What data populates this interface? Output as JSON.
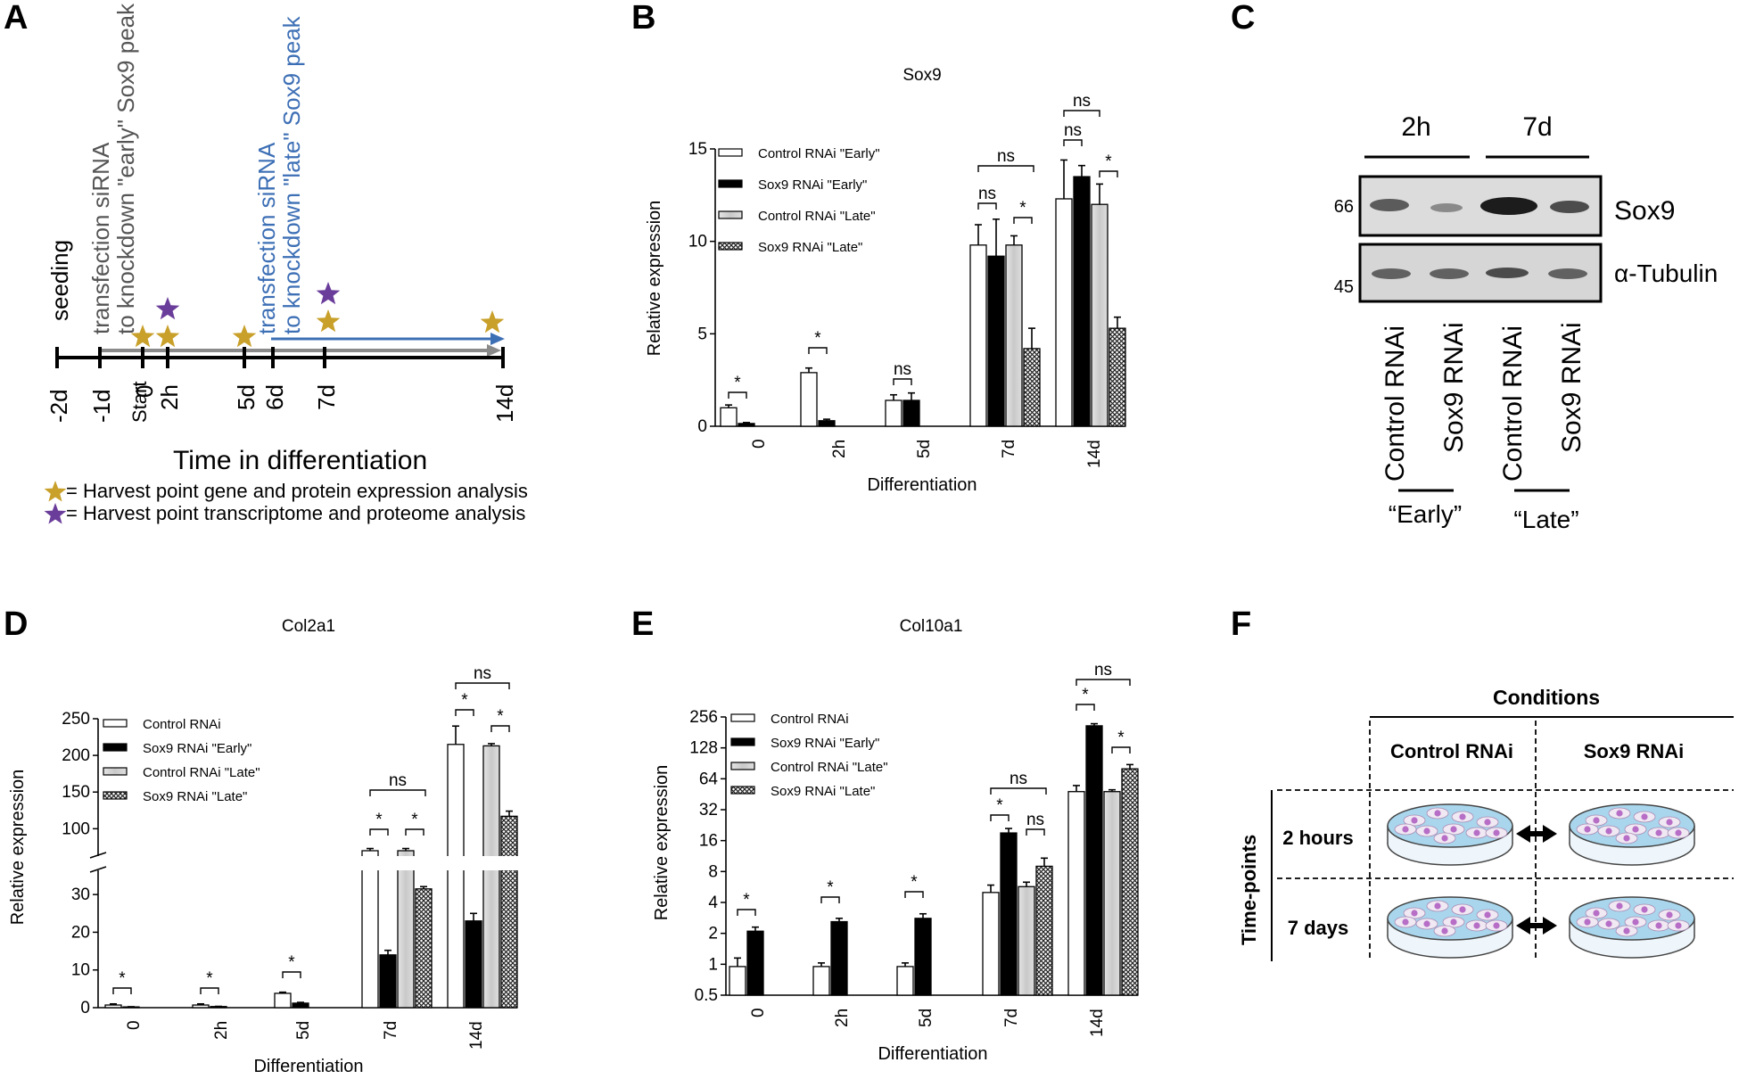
{
  "panel_labels": {
    "A": "A",
    "B": "B",
    "C": "C",
    "D": "D",
    "E": "E",
    "F": "F"
  },
  "colors": {
    "gold_star": "#c8a02a",
    "purple_star": "#6a3d9a",
    "late_arrow": "#3d6fb5",
    "early_arrow": "#808080",
    "late_text": "#3d6fb5",
    "early_text": "#555555",
    "dish": "#a9d6ec",
    "cell": "#b76ec6"
  },
  "timeline": {
    "ticks": [
      "-2d",
      "-1d",
      "0",
      "2h",
      "5d",
      "6d",
      "7d",
      "14d"
    ],
    "start_label": "Start",
    "event_seeding": "seeding",
    "event_early_line1": "transfection siRNA",
    "event_early_line2": "to knockdown \"early\" Sox9 peak",
    "event_late_line1": "transfection siRNA",
    "event_late_line2": "to knockdown \"late\" Sox9 peak",
    "axis_title": "Time in differentiation",
    "legend_gold": "= Harvest point gene and protein expression analysis",
    "legend_purple": "= Harvest point transcriptome and proteome analysis"
  },
  "chart_data": [
    {
      "id": "B",
      "type": "bar",
      "title": "Sox9",
      "xlabel": "Differentiation",
      "ylabel": "Relative expression",
      "categories": [
        "0",
        "2h",
        "5d",
        "7d",
        "14d"
      ],
      "ylim": [
        0,
        15
      ],
      "yticks": [
        "0",
        "5",
        "10",
        "15"
      ],
      "series": [
        {
          "name": "Control RNAi \"Early\"",
          "style": "white",
          "values": [
            1.0,
            2.9,
            1.4,
            9.8,
            12.3
          ],
          "errors": [
            0.15,
            0.25,
            0.3,
            1.1,
            2.1
          ]
        },
        {
          "name": "Sox9 RNAi \"Early\"",
          "style": "black",
          "values": [
            0.15,
            0.3,
            1.4,
            9.2,
            13.5
          ],
          "errors": [
            0.05,
            0.08,
            0.4,
            2.0,
            0.6
          ]
        },
        {
          "name": "Control RNAi \"Late\"",
          "style": "grey",
          "values": [
            null,
            null,
            null,
            9.8,
            12.0
          ],
          "errors": [
            null,
            null,
            null,
            0.5,
            1.1
          ]
        },
        {
          "name": "Sox9 RNAi \"Late\"",
          "style": "hatch",
          "values": [
            null,
            null,
            null,
            4.2,
            5.3
          ],
          "errors": [
            null,
            null,
            null,
            1.1,
            0.6
          ]
        }
      ],
      "annotations": [
        "*",
        "*",
        "ns",
        "ns",
        "ns",
        "*",
        "ns",
        "ns",
        "*"
      ]
    },
    {
      "id": "D",
      "type": "bar",
      "title": "Col2a1",
      "xlabel": "Differentiation",
      "ylabel": "Relative expression",
      "categories": [
        "0",
        "2h",
        "5d",
        "7d",
        "14d"
      ],
      "ylim": [
        0,
        250
      ],
      "yticks_lower": [
        "0",
        "10",
        "20",
        "30"
      ],
      "yticks_upper": [
        "100",
        "150",
        "200",
        "250"
      ],
      "series": [
        {
          "name": "Control RNAi",
          "style": "white",
          "values": [
            0.7,
            0.7,
            3.8,
            70,
            215
          ],
          "errors": [
            0.3,
            0.3,
            0.3,
            3,
            25
          ]
        },
        {
          "name": "Sox9 RNAi \"Early\"",
          "style": "black",
          "values": [
            0.2,
            0.3,
            1.2,
            14,
            23
          ],
          "errors": [
            0.05,
            0.05,
            0.2,
            1.2,
            2
          ]
        },
        {
          "name": "Control RNAi \"Late\"",
          "style": "grey",
          "values": [
            null,
            null,
            null,
            70,
            213
          ],
          "errors": [
            null,
            null,
            null,
            3,
            3
          ]
        },
        {
          "name": "Sox9 RNAi \"Late\"",
          "style": "hatch",
          "values": [
            null,
            null,
            null,
            31.5,
            117
          ],
          "errors": [
            null,
            null,
            null,
            0.6,
            7
          ]
        }
      ],
      "annotations": [
        "*",
        "*",
        "*",
        "ns",
        "*",
        "*",
        "ns",
        "*",
        "*"
      ]
    },
    {
      "id": "E",
      "type": "bar",
      "title": "Col10a1",
      "xlabel": "Differentiation",
      "ylabel": "Relative expression",
      "categories": [
        "0",
        "2h",
        "5d",
        "7d",
        "14d"
      ],
      "ylim": [
        0.5,
        256
      ],
      "yscale": "log2",
      "yticks": [
        "0.5",
        "1",
        "2",
        "4",
        "8",
        "16",
        "32",
        "64",
        "128",
        "256"
      ],
      "series": [
        {
          "name": "Control RNAi",
          "style": "white",
          "values": [
            0.95,
            0.95,
            0.95,
            5.0,
            48
          ],
          "errors": [
            0.2,
            0.08,
            0.08,
            0.9,
            7
          ]
        },
        {
          "name": "Sox9 RNAi \"Early\"",
          "style": "black",
          "values": [
            2.1,
            2.6,
            2.8,
            19,
            210
          ],
          "errors": [
            0.2,
            0.2,
            0.3,
            2,
            10
          ]
        },
        {
          "name": "Control RNAi \"Late\"",
          "style": "grey",
          "values": [
            null,
            null,
            null,
            5.7,
            48
          ],
          "errors": [
            null,
            null,
            null,
            0.6,
            2
          ]
        },
        {
          "name": "Sox9 RNAi \"Late\"",
          "style": "hatch",
          "values": [
            null,
            null,
            null,
            9.0,
            80
          ],
          "errors": [
            null,
            null,
            null,
            1.8,
            8
          ]
        }
      ],
      "annotations": [
        "*",
        "*",
        "*",
        "ns",
        "*",
        "ns",
        "ns",
        "*",
        "*"
      ]
    }
  ],
  "blot": {
    "top_labels": [
      "2h",
      "7d"
    ],
    "mw": [
      "66",
      "45"
    ],
    "proteins": [
      "Sox9",
      "α-Tubulin"
    ],
    "lanes": [
      "Control RNAi",
      "Sox9 RNAi",
      "Control RNAi",
      "Sox9 RNAi"
    ],
    "group_early": "“Early”",
    "group_late": "“Late”"
  },
  "conditions": {
    "header": "Conditions",
    "col1": "Control RNAi",
    "col2": "Sox9 RNAi",
    "row_header": "Time-points",
    "row1": "2 hours",
    "row2": "7 days"
  }
}
